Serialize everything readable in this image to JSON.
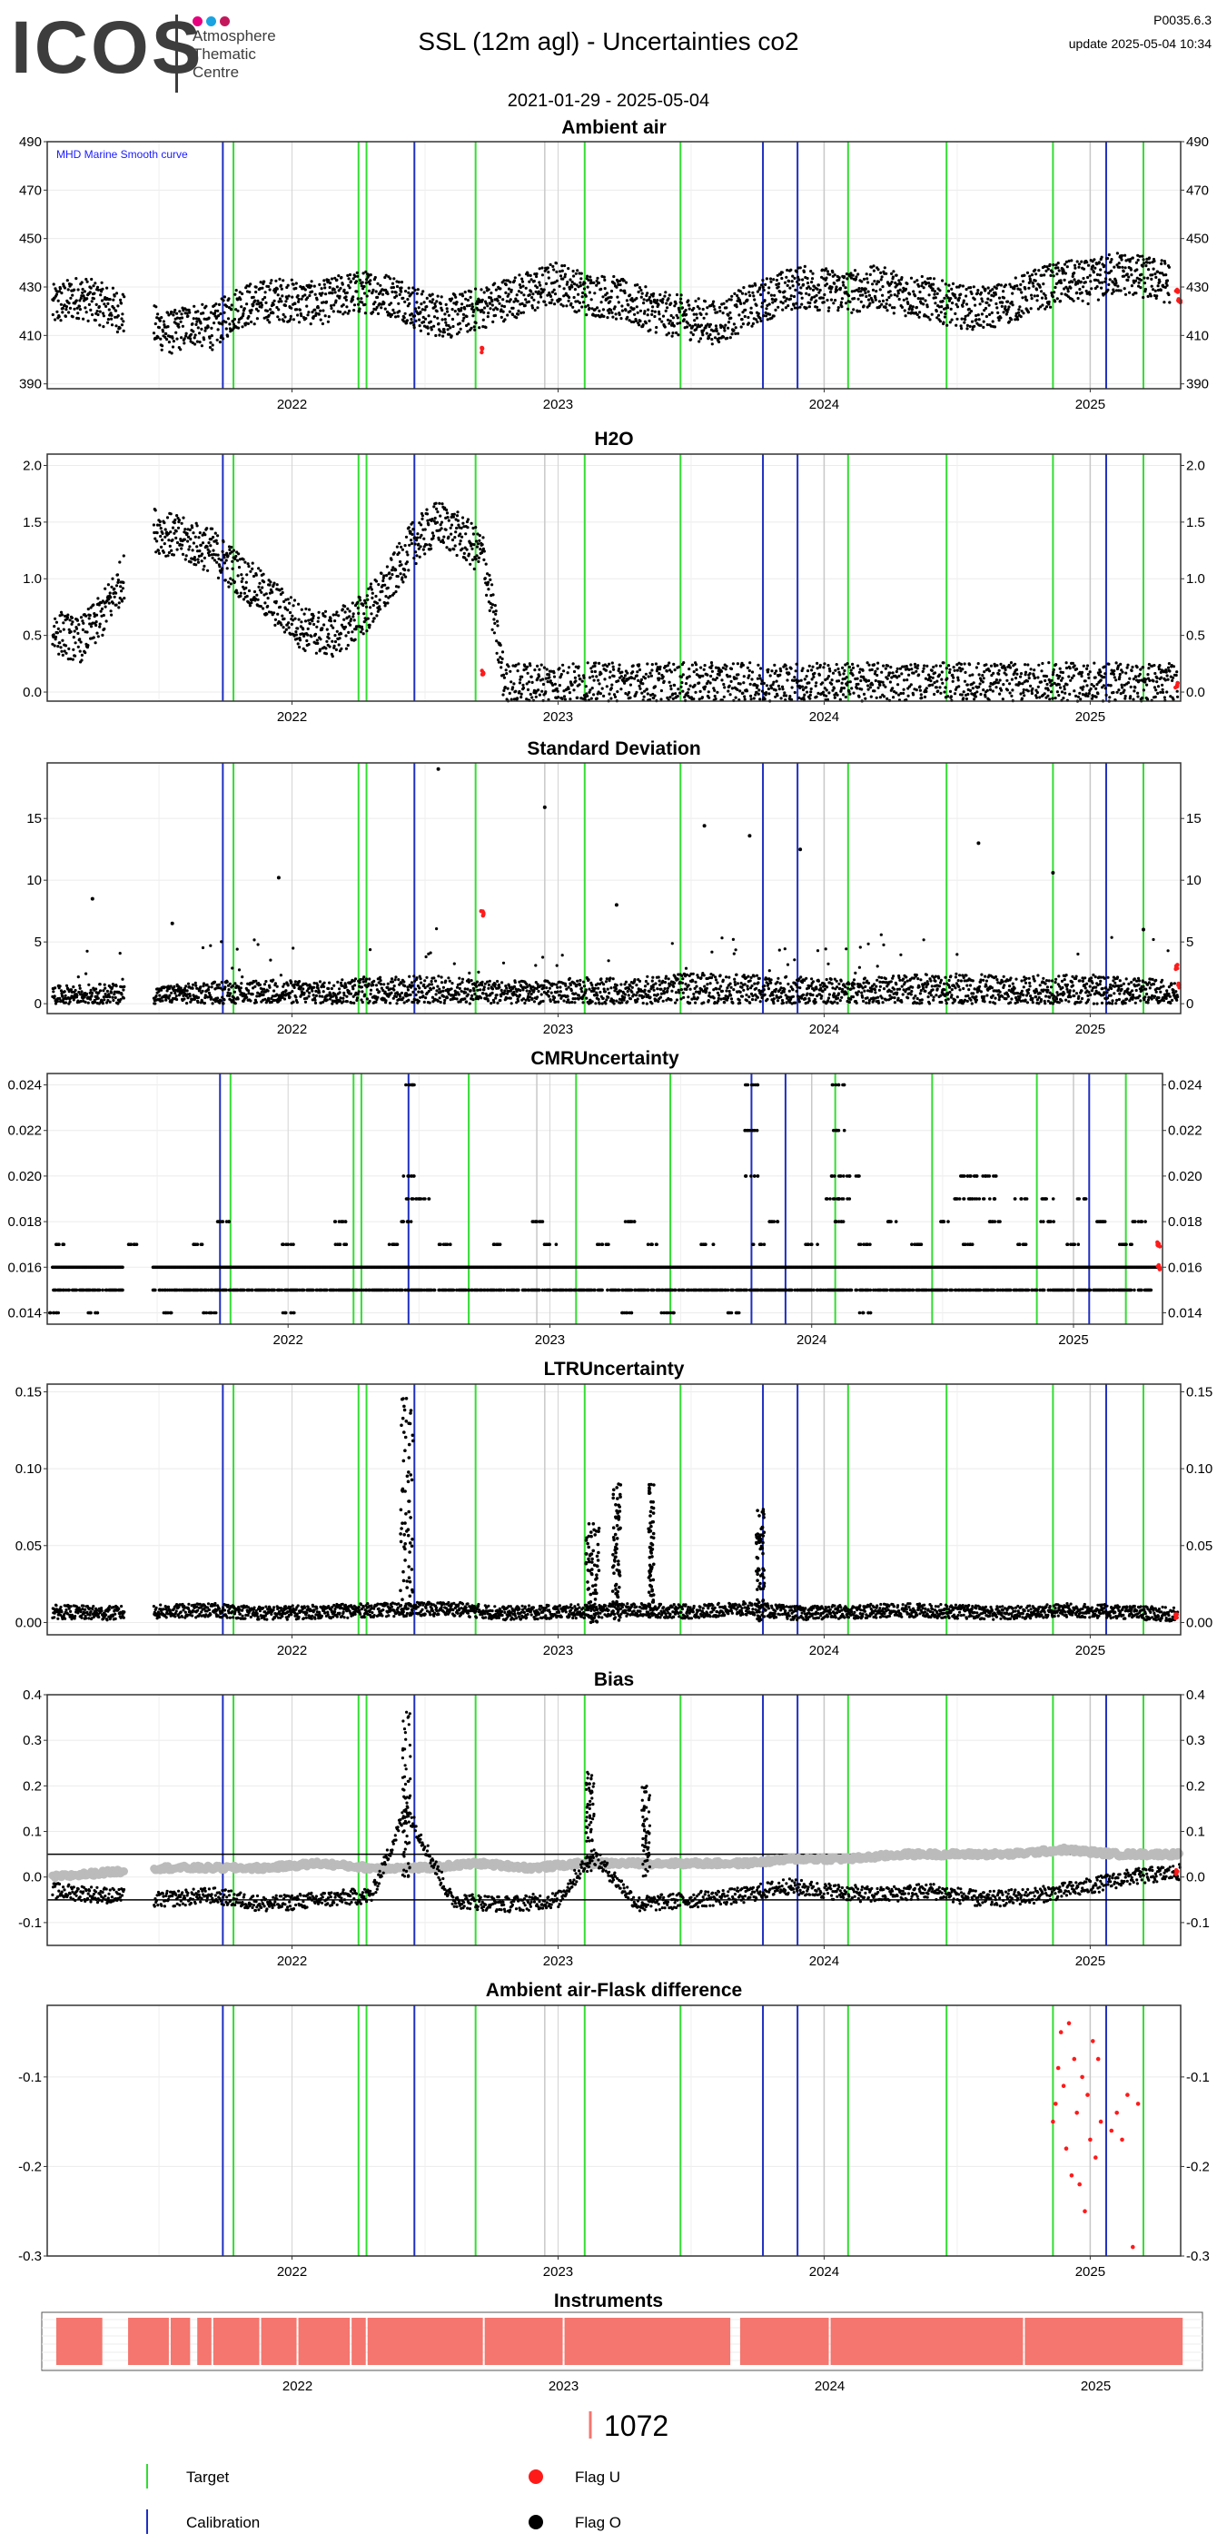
{
  "logo": {
    "text": "ICOS",
    "subtitle": [
      "Atmosphere",
      "Thematic",
      "Centre"
    ],
    "dot_colors": [
      "#e6007e",
      "#1aa3e0",
      "#c2185b"
    ]
  },
  "header": {
    "title": "SSL  (12m agl) - Uncertainties co2",
    "version": "P0035.6.3",
    "update": "update  2025-05-04 10:34",
    "date_range": "2021-01-29 - 2025-05-04"
  },
  "colors": {
    "target_line": "#33dd33",
    "calibration_line": "#1f2fbf",
    "flag_u": "#ff1a1a",
    "flag_o": "#000000",
    "instrument_fill": "#f4766e",
    "grid": "#ebebeb",
    "bias_smooth": "#bbbbbb",
    "annotation": "#1a1aff"
  },
  "x_axis": {
    "start": 2021.08,
    "end": 2025.34,
    "ticks": [
      2022,
      2023,
      2024,
      2025
    ],
    "tick_labels": [
      "2022",
      "2023",
      "2024",
      "2025"
    ]
  },
  "events": {
    "calibration": [
      2021.74,
      2022.46,
      2023.77,
      2023.9,
      2025.06
    ],
    "target": [
      2021.78,
      2022.25,
      2022.28,
      2022.69,
      2023.1,
      2023.46,
      2024.09,
      2024.46,
      2024.86,
      2025.2
    ]
  },
  "chart_data": [
    {
      "id": "ambient",
      "type": "scatter",
      "title": "Ambient air",
      "annotation": "MHD Marine Smooth curve",
      "ylim": [
        388,
        490
      ],
      "yticks": [
        390,
        410,
        430,
        450,
        470,
        490
      ],
      "tick_labels": [
        "390",
        "410",
        "430",
        "450",
        "470",
        "490"
      ],
      "series": [
        {
          "x": [
            2021.1,
            2021.2,
            2021.28,
            2021.33,
            2021.47,
            2021.55,
            2021.62,
            2021.7,
            2021.8,
            2021.95,
            2022.1,
            2022.2,
            2022.3,
            2022.4,
            2022.5,
            2022.6,
            2022.7,
            2022.8,
            2022.9,
            2023.0,
            2023.1,
            2023.2,
            2023.3,
            2023.4,
            2023.5,
            2023.6,
            2023.7,
            2023.8,
            2023.9,
            2024.0,
            2024.1,
            2024.2,
            2024.3,
            2024.4,
            2024.5,
            2024.6,
            2024.7,
            2024.8,
            2024.9,
            2025.0,
            2025.1,
            2025.2,
            2025.3
          ],
          "y": [
            422,
            426,
            423,
            421,
            414,
            411,
            415,
            413,
            422,
            425,
            423,
            427,
            428,
            426,
            419,
            418,
            421,
            425,
            428,
            432,
            427,
            426,
            422,
            419,
            417,
            415,
            421,
            426,
            430,
            429,
            428,
            430,
            427,
            425,
            422,
            421,
            424,
            429,
            432,
            432,
            436,
            434,
            432
          ],
          "spread": 9
        }
      ],
      "flags_u": {
        "x": [
          2022.72,
          2025.33,
          2025.34
        ],
        "y": [
          404,
          428,
          424
        ]
      }
    },
    {
      "id": "h2o",
      "type": "scatter",
      "title": "H2O",
      "ylim": [
        -0.08,
        2.1
      ],
      "yticks": [
        0.0,
        0.5,
        1.0,
        1.5,
        2.0
      ],
      "tick_labels": [
        "0.0",
        "0.5",
        "1.0",
        "1.5",
        "2.0"
      ],
      "series": [
        {
          "x": [
            2021.1,
            2021.2,
            2021.28,
            2021.47,
            2021.58,
            2021.7,
            2021.82,
            2021.95,
            2022.05,
            2022.15,
            2022.25,
            2022.35,
            2022.45,
            2022.55,
            2022.65,
            2022.72,
            2022.8,
            2023.0,
            2023.3,
            2023.6,
            2023.9,
            2024.2,
            2024.5,
            2024.8,
            2025.1,
            2025.33
          ],
          "y": [
            0.55,
            0.45,
            0.65,
            1.45,
            1.35,
            1.25,
            1.0,
            0.75,
            0.55,
            0.5,
            0.65,
            0.9,
            1.3,
            1.5,
            1.35,
            1.2,
            0.06,
            0.06,
            0.06,
            0.06,
            0.06,
            0.06,
            0.06,
            0.06,
            0.06,
            0.06
          ],
          "spread": 0.2
        }
      ],
      "flags_u": {
        "x": [
          2022.72,
          2025.33
        ],
        "y": [
          0.17,
          0.06
        ]
      }
    },
    {
      "id": "stdev",
      "type": "scatter",
      "title": "Standard Deviation",
      "ylim": [
        -0.8,
        19.5
      ],
      "yticks": [
        0,
        5,
        10,
        15
      ],
      "tick_labels": [
        "0",
        "5",
        "10",
        "15"
      ],
      "series": [
        {
          "x": [
            2021.1,
            2021.3,
            2021.5,
            2021.7,
            2021.9,
            2022.1,
            2022.3,
            2022.5,
            2022.7,
            2022.9,
            2023.1,
            2023.3,
            2023.5,
            2023.7,
            2023.9,
            2024.1,
            2024.3,
            2024.5,
            2024.7,
            2024.9,
            2025.1,
            2025.33
          ],
          "y": [
            0.8,
            0.9,
            0.8,
            1.0,
            1.1,
            1.0,
            1.2,
            1.3,
            1.1,
            1.0,
            1.2,
            1.1,
            1.4,
            1.3,
            1.2,
            1.1,
            1.3,
            1.4,
            1.2,
            1.3,
            1.2,
            1.1
          ],
          "spread": 1.0
        }
      ],
      "outliers": {
        "x": [
          2021.25,
          2021.55,
          2021.95,
          2022.55,
          2022.95,
          2023.22,
          2023.55,
          2023.72,
          2023.91,
          2024.58,
          2024.86,
          2025.2
        ],
        "y": [
          8.5,
          6.5,
          10.2,
          19.0,
          15.9,
          8.0,
          14.4,
          13.6,
          12.5,
          13.0,
          10.6,
          6.0
        ]
      },
      "flags_u": {
        "x": [
          2022.72,
          2025.33,
          2025.34
        ],
        "y": [
          7.3,
          3.0,
          1.5
        ]
      }
    },
    {
      "id": "cmr",
      "type": "scatter",
      "title": "CMRUncertainty",
      "ylim": [
        0.0135,
        0.0245
      ],
      "yticks": [
        0.014,
        0.016,
        0.018,
        0.02,
        0.022,
        0.024
      ],
      "tick_labels": [
        "0.014",
        "0.016",
        "0.018",
        "0.020",
        "0.022",
        "0.024"
      ],
      "levels": [
        {
          "y": 0.014,
          "x": [
            2021.1,
            2021.25,
            2021.55,
            2021.7,
            2022.0,
            2023.3,
            2023.45,
            2023.7,
            2024.2
          ]
        },
        {
          "y": 0.015,
          "x_range": [
            2021.1,
            2025.3
          ]
        },
        {
          "y": 0.016,
          "x_range": [
            2021.1,
            2025.32
          ]
        },
        {
          "y": 0.017,
          "x": [
            2021.12,
            2021.4,
            2021.65,
            2022.0,
            2022.2,
            2022.4,
            2022.6,
            2022.8,
            2023.0,
            2023.2,
            2023.4,
            2023.6,
            2023.8,
            2024.0,
            2024.2,
            2024.4,
            2024.6,
            2024.8,
            2025.0,
            2025.2
          ]
        },
        {
          "y": 0.018,
          "x": [
            2021.75,
            2022.2,
            2022.45,
            2022.95,
            2023.3,
            2023.85,
            2024.1,
            2024.3,
            2024.5,
            2024.7,
            2024.9,
            2025.1,
            2025.25
          ]
        },
        {
          "y": 0.019,
          "x": [
            2022.47,
            2022.52,
            2024.08,
            2024.12,
            2024.57,
            2024.62,
            2024.68,
            2024.8,
            2024.9,
            2025.04
          ]
        },
        {
          "y": 0.02,
          "x": [
            2022.46,
            2023.77,
            2024.1,
            2024.16,
            2024.58,
            2024.63,
            2024.68
          ]
        },
        {
          "y": 0.022,
          "x": [
            2023.77,
            2024.1
          ]
        },
        {
          "y": 0.024,
          "x": [
            2022.46,
            2023.77,
            2024.1
          ]
        }
      ],
      "flags_u": {
        "x": [
          2025.33,
          2025.33
        ],
        "y": [
          0.017,
          0.016
        ]
      }
    },
    {
      "id": "ltr",
      "type": "scatter",
      "title": "LTRUncertainty",
      "ylim": [
        -0.008,
        0.155
      ],
      "yticks": [
        0.0,
        0.05,
        0.1,
        0.15
      ],
      "tick_labels": [
        "0.00",
        "0.05",
        "0.10",
        "0.15"
      ],
      "series": [
        {
          "x": [
            2021.1,
            2021.3,
            2021.5,
            2021.7,
            2021.9,
            2022.1,
            2022.3,
            2022.6,
            2022.8,
            2023.0,
            2023.3,
            2023.5,
            2023.7,
            2023.9,
            2024.1,
            2024.3,
            2024.5,
            2024.7,
            2024.9,
            2025.1,
            2025.33
          ],
          "y": [
            0.007,
            0.006,
            0.007,
            0.008,
            0.006,
            0.007,
            0.008,
            0.009,
            0.006,
            0.007,
            0.008,
            0.007,
            0.009,
            0.006,
            0.007,
            0.008,
            0.007,
            0.006,
            0.008,
            0.007,
            0.005
          ],
          "spread": 0.006
        }
      ],
      "spikes": [
        {
          "x": 2022.43,
          "peak": 0.147,
          "width": 0.05
        },
        {
          "x": 2023.13,
          "peak": 0.065,
          "width": 0.05
        },
        {
          "x": 2023.22,
          "peak": 0.09,
          "width": 0.03
        },
        {
          "x": 2023.35,
          "peak": 0.092,
          "width": 0.02
        },
        {
          "x": 2023.76,
          "peak": 0.075,
          "width": 0.03
        }
      ],
      "flags_u": {
        "x": [
          2025.33
        ],
        "y": [
          0.004
        ]
      }
    },
    {
      "id": "bias",
      "type": "line",
      "title": "Bias",
      "ylim": [
        -0.15,
        0.4
      ],
      "yticks": [
        -0.1,
        0.0,
        0.1,
        0.2,
        0.3,
        0.4
      ],
      "tick_labels": [
        "-0.1",
        "0.0",
        "0.1",
        "0.2",
        "0.3",
        "0.4"
      ],
      "hlines": [
        0.05,
        -0.05
      ],
      "series": [
        {
          "name": "smooth",
          "x": [
            2021.1,
            2021.3,
            2021.5,
            2021.7,
            2021.9,
            2022.1,
            2022.3,
            2022.5,
            2022.7,
            2022.9,
            2023.1,
            2023.3,
            2023.5,
            2023.7,
            2023.9,
            2024.1,
            2024.3,
            2024.5,
            2024.7,
            2024.9,
            2025.1,
            2025.33
          ],
          "y": [
            0.0,
            0.01,
            0.02,
            0.02,
            0.02,
            0.03,
            0.02,
            0.02,
            0.03,
            0.02,
            0.03,
            0.03,
            0.03,
            0.03,
            0.04,
            0.04,
            0.05,
            0.05,
            0.05,
            0.06,
            0.05,
            0.05
          ]
        },
        {
          "name": "points",
          "x": [
            2021.1,
            2021.3,
            2021.5,
            2021.7,
            2021.9,
            2022.1,
            2022.3,
            2022.43,
            2022.6,
            2022.8,
            2023.0,
            2023.13,
            2023.3,
            2023.5,
            2023.7,
            2023.85,
            2024.0,
            2024.2,
            2024.4,
            2024.6,
            2024.8,
            2025.0,
            2025.15,
            2025.33
          ],
          "y": [
            -0.03,
            -0.04,
            -0.05,
            -0.04,
            -0.06,
            -0.05,
            -0.04,
            0.15,
            -0.05,
            -0.06,
            -0.05,
            0.05,
            -0.06,
            -0.05,
            -0.04,
            -0.02,
            -0.03,
            -0.04,
            -0.03,
            -0.05,
            -0.04,
            -0.02,
            0.0,
            0.01
          ]
        }
      ],
      "spikes": [
        {
          "x": 2022.43,
          "peak": 0.37
        },
        {
          "x": 2023.12,
          "peak": 0.23
        },
        {
          "x": 2023.33,
          "peak": 0.2
        }
      ],
      "flags_u": {
        "x": [
          2025.33
        ],
        "y": [
          0.01
        ]
      }
    },
    {
      "id": "flask",
      "type": "scatter",
      "title": "Ambient air-Flask difference",
      "ylim": [
        -0.3,
        -0.02
      ],
      "yticks": [
        -0.3,
        -0.2,
        -0.1
      ],
      "tick_labels": [
        "-0.3",
        "-0.2",
        "-0.1"
      ],
      "series": [
        {
          "name": "Flag U",
          "x": [
            2024.86,
            2024.87,
            2024.88,
            2024.89,
            2024.9,
            2024.91,
            2024.92,
            2024.93,
            2024.94,
            2024.95,
            2024.96,
            2024.97,
            2024.98,
            2024.99,
            2025.0,
            2025.01,
            2025.02,
            2025.03,
            2025.04,
            2025.08,
            2025.1,
            2025.12,
            2025.14,
            2025.16,
            2025.18
          ],
          "y": [
            -0.15,
            -0.13,
            -0.09,
            -0.05,
            -0.11,
            -0.18,
            -0.04,
            -0.21,
            -0.08,
            -0.14,
            -0.22,
            -0.1,
            -0.25,
            -0.12,
            -0.17,
            -0.06,
            -0.19,
            -0.08,
            -0.15,
            -0.16,
            -0.14,
            -0.17,
            -0.12,
            -0.29,
            -0.13
          ]
        }
      ]
    }
  ],
  "instruments": {
    "title": "Instruments",
    "label": "1072",
    "segments": [
      [
        2021.09,
        2021.27
      ],
      [
        2021.36,
        2021.52
      ],
      [
        2021.52,
        2021.6
      ],
      [
        2021.62,
        2021.68
      ],
      [
        2021.68,
        2021.86
      ],
      [
        2021.86,
        2022.0
      ],
      [
        2022.0,
        2022.2
      ],
      [
        2022.2,
        2022.26
      ],
      [
        2022.26,
        2022.7
      ],
      [
        2022.7,
        2023.0
      ],
      [
        2023.0,
        2023.63
      ],
      [
        2023.66,
        2024.0
      ],
      [
        2024.0,
        2024.73
      ],
      [
        2024.73,
        2025.33
      ]
    ]
  },
  "legend": {
    "target": "Target",
    "calibration": "Calibration",
    "flag_u": "Flag U",
    "flag_o": "Flag O"
  }
}
